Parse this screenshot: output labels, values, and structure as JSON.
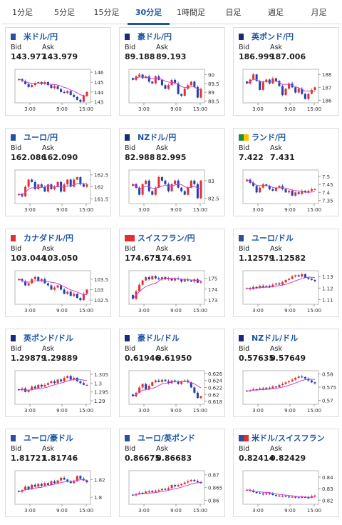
{
  "tabs": [
    "1分足",
    "5分足",
    "15分足",
    "30分足",
    "1時間足",
    "日足",
    "週足",
    "月足"
  ],
  "active_tab": "30分足",
  "bid_label": "Bid",
  "ask_label": "Ask",
  "colors": {
    "accent": "#1f56a3",
    "up": "#e03030",
    "down": "#2040b0",
    "ma": "#d040d0"
  },
  "cards": [
    {
      "pair": "米ドル/円",
      "bid": "143.977",
      "ask": "143.979",
      "flags": [
        "#2a4ea0",
        "#ffffff"
      ],
      "chart_data": {
        "type": "candlestick",
        "x_ticks": [
          "3:00",
          "9:00",
          "15:00"
        ],
        "y_ticks": [
          "146",
          "145",
          "144",
          "143"
        ],
        "ylim": [
          142.9,
          146.3
        ],
        "close": [
          145.3,
          145.1,
          144.8,
          144.5,
          144.7,
          144.9,
          145.0,
          144.8,
          145.0,
          144.7,
          144.4,
          144.6,
          144.3,
          144.0,
          143.9,
          144.1,
          143.7,
          143.5,
          143.2,
          143.0,
          143.6,
          144.0
        ]
      }
    },
    {
      "pair": "豪ドル/円",
      "bid": "89.188",
      "ask": "89.193",
      "flags": [
        "#1a2a7a",
        "#ffffff"
      ],
      "chart_data": {
        "type": "candlestick",
        "x_ticks": [
          "3:00",
          "9:00",
          "15:00"
        ],
        "y_ticks": [
          "90",
          "89.5",
          "89",
          "88.5"
        ],
        "ylim": [
          88.4,
          90.3
        ],
        "close": [
          89.7,
          89.9,
          90.0,
          89.8,
          89.9,
          89.6,
          89.5,
          89.9,
          89.7,
          89.4,
          89.2,
          89.4,
          89.7,
          89.5,
          88.9,
          88.8,
          89.2,
          89.4,
          89.6,
          89.3,
          88.7,
          89.2
        ]
      }
    },
    {
      "pair": "英ポンド/円",
      "bid": "186.999",
      "ask": "187.006",
      "flags": [
        "#1a2a7a",
        "#ffffff"
      ],
      "chart_data": {
        "type": "candlestick",
        "x_ticks": [
          "3:00",
          "9:00",
          "15:00"
        ],
        "y_ticks": [
          "188",
          "187",
          "186"
        ],
        "ylim": [
          185.8,
          188.4
        ],
        "close": [
          187.3,
          187.6,
          188.0,
          187.5,
          186.8,
          187.4,
          187.6,
          187.3,
          187.7,
          187.5,
          187.1,
          186.4,
          186.9,
          187.3,
          187.0,
          186.6,
          186.9,
          186.5,
          186.1,
          186.5,
          186.8,
          187.0
        ]
      }
    },
    {
      "pair": "ユーロ/円",
      "bid": "162.086",
      "ask": "162.090",
      "flags": [
        "#2a4ea0",
        "#ffffff"
      ],
      "chart_data": {
        "type": "candlestick",
        "x_ticks": [
          "3:00",
          "9:00",
          "15:00"
        ],
        "y_ticks": [
          "162.5",
          "162",
          "161.5"
        ],
        "ylim": [
          161.3,
          162.7
        ],
        "close": [
          161.7,
          161.6,
          162.0,
          162.3,
          162.2,
          161.9,
          162.1,
          162.0,
          161.8,
          162.1,
          161.9,
          162.0,
          162.2,
          161.8,
          162.1,
          162.3,
          162.0,
          162.3,
          162.4,
          162.1,
          162.0,
          162.1
        ]
      }
    },
    {
      "pair": "NZドル/円",
      "bid": "82.988",
      "ask": "82.995",
      "flags": [
        "#1a2a7a",
        "#ffffff"
      ],
      "chart_data": {
        "type": "candlestick",
        "x_ticks": [
          "3:00",
          "9:00",
          "15:00"
        ],
        "y_ticks": [
          "83",
          "82.5"
        ],
        "ylim": [
          82.35,
          83.3
        ],
        "close": [
          82.9,
          82.8,
          82.6,
          82.9,
          83.0,
          82.7,
          82.6,
          82.8,
          83.1,
          83.0,
          82.9,
          82.7,
          82.9,
          83.0,
          82.8,
          82.7,
          82.6,
          82.8,
          83.0,
          82.9,
          82.5,
          83.0
        ]
      }
    },
    {
      "pair": "ランド/円",
      "bid": "7.422",
      "ask": "7.431",
      "flags": [
        "#2a8a3a",
        "#f4c400"
      ],
      "chart_data": {
        "type": "candlestick",
        "x_ticks": [
          "3:00",
          "9:00",
          "15:00"
        ],
        "y_ticks": [
          "7.5",
          "7.45",
          "7.4",
          "7.35"
        ],
        "ylim": [
          7.33,
          7.54
        ],
        "close": [
          7.48,
          7.46,
          7.44,
          7.4,
          7.43,
          7.45,
          7.44,
          7.42,
          7.41,
          7.43,
          7.44,
          7.42,
          7.4,
          7.41,
          7.38,
          7.4,
          7.39,
          7.41,
          7.4,
          7.41,
          7.42,
          7.42
        ]
      }
    },
    {
      "pair": "カナダドル/円",
      "bid": "103.044",
      "ask": "103.050",
      "flags": [
        "#e03030",
        "#ffffff"
      ],
      "chart_data": {
        "type": "candlestick",
        "x_ticks": [
          "3:00",
          "9:00",
          "15:00"
        ],
        "y_ticks": [
          "103.5",
          "103",
          "102.5"
        ],
        "ylim": [
          102.3,
          103.9
        ],
        "close": [
          103.5,
          103.4,
          103.2,
          103.3,
          103.5,
          103.6,
          103.4,
          103.5,
          103.3,
          103.2,
          103.0,
          103.1,
          103.2,
          103.0,
          102.8,
          102.9,
          102.7,
          102.8,
          102.6,
          102.5,
          102.8,
          103.0
        ]
      }
    },
    {
      "pair": "スイスフラン/円",
      "bid": "174.675",
      "ask": "174.691",
      "flags": [
        "#e03030",
        "#e03030"
      ],
      "chart_data": {
        "type": "candlestick",
        "x_ticks": [
          "3:00",
          "9:00",
          "15:00"
        ],
        "y_ticks": [
          "175",
          "174",
          "173"
        ],
        "ylim": [
          172.6,
          175.7
        ],
        "close": [
          173.1,
          173.8,
          174.4,
          174.8,
          175.1,
          174.9,
          175.2,
          175.0,
          174.9,
          175.1,
          174.9,
          175.0,
          174.8,
          175.0,
          174.9,
          174.7,
          174.9,
          174.8,
          174.7,
          174.9,
          174.6,
          174.7
        ]
      }
    },
    {
      "pair": "ユーロ/ドル",
      "bid": "1.12579",
      "ask": "1.12582",
      "flags": [
        "#2a4ea0",
        "#ffffff"
      ],
      "chart_data": {
        "type": "candlestick",
        "x_ticks": [
          "3:00",
          "9:00",
          "15:00"
        ],
        "y_ticks": [
          "1.13",
          "1.12",
          "1.11"
        ],
        "ylim": [
          1.106,
          1.135
        ],
        "close": [
          1.12,
          1.119,
          1.121,
          1.12,
          1.122,
          1.121,
          1.122,
          1.121,
          1.123,
          1.124,
          1.123,
          1.125,
          1.127,
          1.128,
          1.13,
          1.131,
          1.13,
          1.132,
          1.129,
          1.128,
          1.127,
          1.126
        ]
      }
    },
    {
      "pair": "英ポンド/ドル",
      "bid": "1.29879",
      "ask": "1.29889",
      "flags": [
        "#1a2a7a",
        "#ffffff"
      ],
      "chart_data": {
        "type": "candlestick",
        "x_ticks": [
          "3:00",
          "9:00",
          "15:00"
        ],
        "y_ticks": [
          "1.305",
          "1.3",
          "1.295",
          "1.29"
        ],
        "ylim": [
          1.288,
          1.307
        ],
        "close": [
          1.296,
          1.297,
          1.295,
          1.296,
          1.298,
          1.297,
          1.299,
          1.298,
          1.299,
          1.3,
          1.301,
          1.3,
          1.302,
          1.301,
          1.303,
          1.304,
          1.302,
          1.303,
          1.301,
          1.3,
          1.299,
          1.299
        ]
      }
    },
    {
      "pair": "豪ドル/ドル",
      "bid": "0.61946",
      "ask": "0.61950",
      "flags": [
        "#1a2a7a",
        "#ffffff"
      ],
      "chart_data": {
        "type": "candlestick",
        "x_ticks": [
          "3:00",
          "9:00",
          "15:00"
        ],
        "y_ticks": [
          "0.626",
          "0.624",
          "0.622",
          "0.62",
          "0.618"
        ],
        "ylim": [
          0.6172,
          0.6268
        ],
        "close": [
          0.6195,
          0.6205,
          0.622,
          0.623,
          0.6215,
          0.6225,
          0.6235,
          0.624,
          0.6236,
          0.6242,
          0.6238,
          0.6232,
          0.624,
          0.6236,
          0.623,
          0.6238,
          0.624,
          0.6235,
          0.622,
          0.6205,
          0.619,
          0.6195
        ]
      }
    },
    {
      "pair": "NZドル/ドル",
      "bid": "0.57635",
      "ask": "0.57649",
      "flags": [
        "#1a2a7a",
        "#ffffff"
      ],
      "chart_data": {
        "type": "candlestick",
        "x_ticks": [
          "3:00",
          "9:00",
          "15:00"
        ],
        "y_ticks": [
          "0.58",
          "0.575",
          "0.57"
        ],
        "ylim": [
          0.5685,
          0.5812
        ],
        "close": [
          0.5735,
          0.5738,
          0.5742,
          0.574,
          0.5745,
          0.5742,
          0.5748,
          0.5745,
          0.5752,
          0.575,
          0.5758,
          0.5762,
          0.5768,
          0.5772,
          0.5778,
          0.5785,
          0.579,
          0.5788,
          0.5782,
          0.5775,
          0.5768,
          0.5764
        ]
      }
    },
    {
      "pair": "ユーロ/豪ドル",
      "bid": "1.81721",
      "ask": "1.81746",
      "flags": [
        "#2a4ea0",
        "#ffffff"
      ],
      "chart_data": {
        "type": "candlestick",
        "x_ticks": [
          "3:00",
          "9:00",
          "15:00"
        ],
        "y_ticks": [
          "1.82",
          "1.8"
        ],
        "ylim": [
          1.792,
          1.83
        ],
        "close": [
          1.806,
          1.808,
          1.812,
          1.809,
          1.814,
          1.812,
          1.815,
          1.813,
          1.816,
          1.814,
          1.818,
          1.816,
          1.819,
          1.822,
          1.82,
          1.818,
          1.816,
          1.818,
          1.824,
          1.821,
          1.819,
          1.817
        ]
      }
    },
    {
      "pair": "ユーロ/英ポンド",
      "bid": "0.86675",
      "ask": "0.86683",
      "flags": [
        "#2a4ea0",
        "#ffffff"
      ],
      "chart_data": {
        "type": "candlestick",
        "x_ticks": [
          "3:00",
          "9:00",
          "15:00"
        ],
        "y_ticks": [
          "0.87",
          "0.865",
          "0.86"
        ],
        "ylim": [
          0.8585,
          0.8716
        ],
        "close": [
          0.862,
          0.8625,
          0.863,
          0.8628,
          0.8635,
          0.8632,
          0.8638,
          0.8636,
          0.864,
          0.8645,
          0.8642,
          0.8648,
          0.866,
          0.8655,
          0.866,
          0.8664,
          0.867,
          0.8675,
          0.868,
          0.8676,
          0.8672,
          0.8668
        ]
      }
    },
    {
      "pair": "米ドル/スイスフラン",
      "bid": "0.82414",
      "ask": "0.82429",
      "flags": [
        "#2a4ea0",
        "#e03030"
      ],
      "chart_data": {
        "type": "candlestick",
        "x_ticks": [
          "3:00",
          "9:00",
          "15:00"
        ],
        "y_ticks": [
          "0.84",
          "0.83",
          "0.82"
        ],
        "ylim": [
          0.8165,
          0.8455
        ],
        "close": [
          0.829,
          0.8282,
          0.827,
          0.8265,
          0.8258,
          0.825,
          0.826,
          0.8255,
          0.8245,
          0.824,
          0.8235,
          0.8238,
          0.8232,
          0.8228,
          0.823,
          0.8225,
          0.8222,
          0.8228,
          0.8224,
          0.822,
          0.8235,
          0.8241
        ]
      }
    }
  ]
}
